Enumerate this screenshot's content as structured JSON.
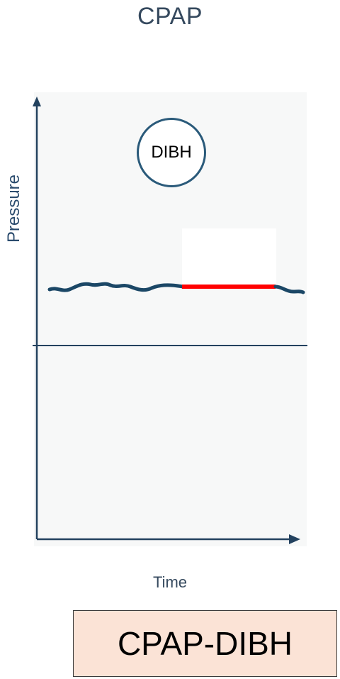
{
  "title": "CPAP",
  "diagram": {
    "y_axis_label": "Pressure",
    "x_axis_label": "Time",
    "marker_label": "DIBH"
  },
  "caption": "CPAP-DIBH",
  "colors": {
    "axis": "#23425f",
    "trace": "#1b4766",
    "hold_segment": "#ff0000",
    "caption_background": "#fbe3d6"
  }
}
